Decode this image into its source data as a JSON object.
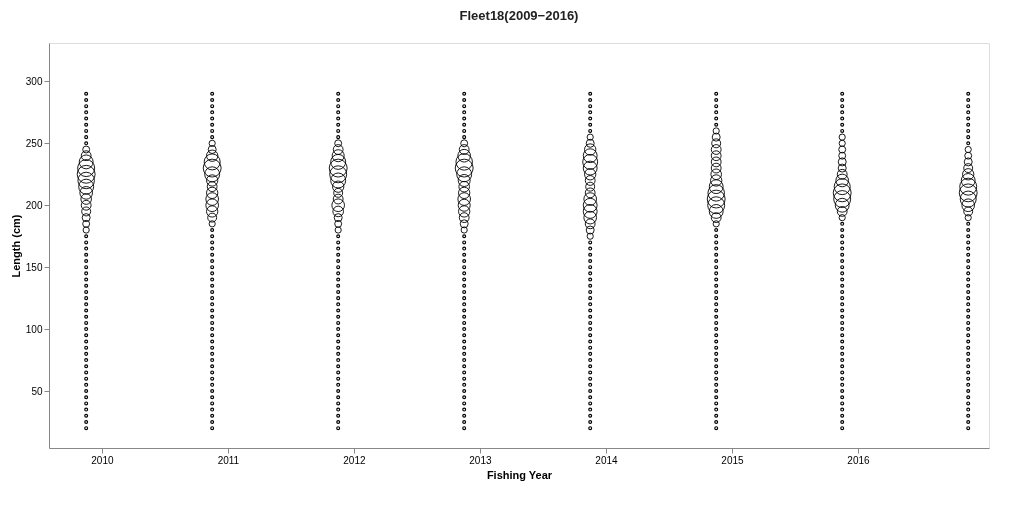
{
  "chart_data": {
    "type": "bubble",
    "title": "Fleet18(2009−2016)",
    "xlabel": "Fishing Year",
    "ylabel": "Length (cm)",
    "xlim": [
      2009.58,
      2017.04
    ],
    "xticks": [
      2010,
      2011,
      2012,
      2013,
      2014,
      2015,
      2016
    ],
    "ylim": [
      4,
      331
    ],
    "yticks": [
      50,
      100,
      150,
      200,
      250,
      300
    ],
    "grid": false,
    "legend": false,
    "series": [
      {
        "color": "#000000",
        "x": [
          2009.875,
          2009.875,
          2009.875,
          2009.875,
          2009.875,
          2009.875,
          2009.875,
          2009.875,
          2009.875,
          2009.875,
          2009.875,
          2009.875,
          2009.875,
          2009.875
        ],
        "values": [
          180,
          185,
          190,
          195,
          200,
          205,
          210,
          215,
          220,
          225,
          230,
          235,
          240,
          245
        ],
        "sizes": [
          0.12,
          0.15,
          0.2,
          0.25,
          0.3,
          0.35,
          0.5,
          0.7,
          0.85,
          1,
          0.9,
          0.6,
          0.3,
          0.15
        ]
      },
      {
        "color": "#000000",
        "x": [
          2010.875,
          2010.875,
          2010.875,
          2010.875,
          2010.875,
          2010.875,
          2010.875,
          2010.875,
          2010.875,
          2010.875,
          2010.875,
          2010.875,
          2010.875,
          2010.875
        ],
        "values": [
          185,
          190,
          195,
          200,
          205,
          210,
          215,
          220,
          225,
          230,
          235,
          240,
          245,
          250
        ],
        "sizes": [
          0.12,
          0.25,
          0.4,
          0.5,
          0.5,
          0.4,
          0.3,
          0.4,
          0.7,
          1,
          0.8,
          0.4,
          0.2,
          0.12
        ]
      },
      {
        "color": "#000000",
        "x": [
          2011.875,
          2011.875,
          2011.875,
          2011.875,
          2011.875,
          2011.875,
          2011.875,
          2011.875,
          2011.875,
          2011.875,
          2011.875,
          2011.875,
          2011.875,
          2011.875,
          2011.875
        ],
        "values": [
          180,
          185,
          190,
          195,
          200,
          205,
          210,
          215,
          220,
          225,
          230,
          235,
          240,
          245,
          250
        ],
        "sizes": [
          0.12,
          0.15,
          0.2,
          0.35,
          0.5,
          0.3,
          0.25,
          0.4,
          0.7,
          0.9,
          1,
          0.7,
          0.45,
          0.3,
          0.15
        ]
      },
      {
        "color": "#000000",
        "x": [
          2012.875,
          2012.875,
          2012.875,
          2012.875,
          2012.875,
          2012.875,
          2012.875,
          2012.875,
          2012.875,
          2012.875,
          2012.875,
          2012.875,
          2012.875,
          2012.875,
          2012.875
        ],
        "values": [
          180,
          185,
          190,
          195,
          200,
          205,
          210,
          215,
          220,
          225,
          230,
          235,
          240,
          245,
          250
        ],
        "sizes": [
          0.12,
          0.2,
          0.3,
          0.4,
          0.45,
          0.5,
          0.4,
          0.35,
          0.45,
          0.7,
          1,
          0.85,
          0.5,
          0.3,
          0.15
        ]
      },
      {
        "color": "#000000",
        "x": [
          2013.875,
          2013.875,
          2013.875,
          2013.875,
          2013.875,
          2013.875,
          2013.875,
          2013.875,
          2013.875,
          2013.875,
          2013.875,
          2013.875,
          2013.875,
          2013.875,
          2013.875,
          2013.875,
          2013.875
        ],
        "values": [
          175,
          180,
          185,
          190,
          195,
          200,
          205,
          210,
          215,
          220,
          225,
          230,
          235,
          240,
          245,
          250,
          255
        ],
        "sizes": [
          0.12,
          0.2,
          0.3,
          0.5,
          0.6,
          0.6,
          0.5,
          0.3,
          0.25,
          0.3,
          0.4,
          0.6,
          0.7,
          0.6,
          0.4,
          0.2,
          0.12
        ]
      },
      {
        "color": "#000000",
        "x": [
          2014.875,
          2014.875,
          2014.875,
          2014.875,
          2014.875,
          2014.875,
          2014.875,
          2014.875,
          2014.875,
          2014.875,
          2014.875,
          2014.875,
          2014.875,
          2014.875,
          2014.875,
          2014.875
        ],
        "values": [
          185,
          190,
          195,
          200,
          205,
          210,
          215,
          220,
          225,
          230,
          235,
          240,
          245,
          250,
          255,
          260
        ],
        "sizes": [
          0.12,
          0.3,
          0.6,
          0.9,
          1,
          0.85,
          0.6,
          0.4,
          0.35,
          0.3,
          0.3,
          0.3,
          0.3,
          0.25,
          0.2,
          0.12
        ]
      },
      {
        "color": "#000000",
        "x": [
          2015.875,
          2015.875,
          2015.875,
          2015.875,
          2015.875,
          2015.875,
          2015.875,
          2015.875,
          2015.875,
          2015.875,
          2015.875,
          2015.875,
          2015.875,
          2015.875
        ],
        "values": [
          190,
          195,
          200,
          205,
          210,
          215,
          220,
          225,
          230,
          235,
          240,
          245,
          250,
          255
        ],
        "sizes": [
          0.12,
          0.3,
          0.6,
          0.9,
          1,
          0.8,
          0.5,
          0.3,
          0.2,
          0.2,
          0.15,
          0.15,
          0.12,
          0.12
        ]
      },
      {
        "color": "#000000",
        "x": [
          2016.875,
          2016.875,
          2016.875,
          2016.875,
          2016.875,
          2016.875,
          2016.875,
          2016.875,
          2016.875,
          2016.875,
          2016.875,
          2016.875
        ],
        "values": [
          190,
          195,
          200,
          205,
          210,
          215,
          220,
          225,
          230,
          235,
          240,
          245
        ],
        "sizes": [
          0.12,
          0.25,
          0.5,
          0.8,
          1,
          0.9,
          0.6,
          0.4,
          0.25,
          0.2,
          0.15,
          0.12
        ]
      },
      {
        "type": "scatter",
        "color": "#000000",
        "x": [
          2009.875,
          2009.875,
          2009.875,
          2009.875,
          2009.875,
          2009.875,
          2009.875,
          2009.875,
          2009.875,
          2009.875,
          2009.875,
          2009.875,
          2009.875,
          2009.875,
          2009.875,
          2009.875,
          2009.875,
          2009.875,
          2009.875,
          2009.875,
          2009.875,
          2009.875,
          2009.875,
          2009.875,
          2009.875,
          2009.875,
          2009.875,
          2009.875,
          2009.875,
          2009.875,
          2009.875,
          2009.875,
          2009.875,
          2009.875,
          2009.875,
          2009.875,
          2009.875,
          2009.875,
          2009.875,
          2009.875,
          2009.875
        ],
        "values": [
          20,
          25,
          30,
          35,
          40,
          45,
          50,
          55,
          60,
          65,
          70,
          75,
          80,
          85,
          90,
          95,
          100,
          105,
          110,
          115,
          120,
          125,
          130,
          135,
          140,
          145,
          150,
          155,
          160,
          165,
          170,
          175,
          250,
          255,
          260,
          265,
          270,
          275,
          280,
          285,
          290
        ]
      },
      {
        "type": "scatter",
        "color": "#000000",
        "x": [
          2010.875,
          2010.875,
          2010.875,
          2010.875,
          2010.875,
          2010.875,
          2010.875,
          2010.875,
          2010.875,
          2010.875,
          2010.875,
          2010.875,
          2010.875,
          2010.875,
          2010.875,
          2010.875,
          2010.875,
          2010.875,
          2010.875,
          2010.875,
          2010.875,
          2010.875,
          2010.875,
          2010.875,
          2010.875,
          2010.875,
          2010.875,
          2010.875,
          2010.875,
          2010.875,
          2010.875,
          2010.875,
          2010.875,
          2010.875,
          2010.875,
          2010.875,
          2010.875,
          2010.875,
          2010.875,
          2010.875,
          2010.875
        ],
        "values": [
          20,
          25,
          30,
          35,
          40,
          45,
          50,
          55,
          60,
          65,
          70,
          75,
          80,
          85,
          90,
          95,
          100,
          105,
          110,
          115,
          120,
          125,
          130,
          135,
          140,
          145,
          150,
          155,
          160,
          165,
          170,
          175,
          180,
          255,
          260,
          265,
          270,
          275,
          280,
          285,
          290
        ]
      },
      {
        "type": "scatter",
        "color": "#000000",
        "x": [
          2011.875,
          2011.875,
          2011.875,
          2011.875,
          2011.875,
          2011.875,
          2011.875,
          2011.875,
          2011.875,
          2011.875,
          2011.875,
          2011.875,
          2011.875,
          2011.875,
          2011.875,
          2011.875,
          2011.875,
          2011.875,
          2011.875,
          2011.875,
          2011.875,
          2011.875,
          2011.875,
          2011.875,
          2011.875,
          2011.875,
          2011.875,
          2011.875,
          2011.875,
          2011.875,
          2011.875,
          2011.875,
          2011.875,
          2011.875,
          2011.875,
          2011.875,
          2011.875,
          2011.875,
          2011.875,
          2011.875
        ],
        "values": [
          20,
          25,
          30,
          35,
          40,
          45,
          50,
          55,
          60,
          65,
          70,
          75,
          80,
          85,
          90,
          95,
          100,
          105,
          110,
          115,
          120,
          125,
          130,
          135,
          140,
          145,
          150,
          155,
          160,
          165,
          170,
          175,
          255,
          260,
          265,
          270,
          275,
          280,
          285,
          290
        ]
      },
      {
        "type": "scatter",
        "color": "#000000",
        "x": [
          2012.875,
          2012.875,
          2012.875,
          2012.875,
          2012.875,
          2012.875,
          2012.875,
          2012.875,
          2012.875,
          2012.875,
          2012.875,
          2012.875,
          2012.875,
          2012.875,
          2012.875,
          2012.875,
          2012.875,
          2012.875,
          2012.875,
          2012.875,
          2012.875,
          2012.875,
          2012.875,
          2012.875,
          2012.875,
          2012.875,
          2012.875,
          2012.875,
          2012.875,
          2012.875,
          2012.875,
          2012.875,
          2012.875,
          2012.875,
          2012.875,
          2012.875,
          2012.875,
          2012.875,
          2012.875,
          2012.875
        ],
        "values": [
          20,
          25,
          30,
          35,
          40,
          45,
          50,
          55,
          60,
          65,
          70,
          75,
          80,
          85,
          90,
          95,
          100,
          105,
          110,
          115,
          120,
          125,
          130,
          135,
          140,
          145,
          150,
          155,
          160,
          165,
          170,
          175,
          255,
          260,
          265,
          270,
          275,
          280,
          285,
          290
        ]
      },
      {
        "type": "scatter",
        "color": "#000000",
        "x": [
          2013.875,
          2013.875,
          2013.875,
          2013.875,
          2013.875,
          2013.875,
          2013.875,
          2013.875,
          2013.875,
          2013.875,
          2013.875,
          2013.875,
          2013.875,
          2013.875,
          2013.875,
          2013.875,
          2013.875,
          2013.875,
          2013.875,
          2013.875,
          2013.875,
          2013.875,
          2013.875,
          2013.875,
          2013.875,
          2013.875,
          2013.875,
          2013.875,
          2013.875,
          2013.875,
          2013.875,
          2013.875,
          2013.875,
          2013.875,
          2013.875,
          2013.875,
          2013.875,
          2013.875
        ],
        "values": [
          20,
          25,
          30,
          35,
          40,
          45,
          50,
          55,
          60,
          65,
          70,
          75,
          80,
          85,
          90,
          95,
          100,
          105,
          110,
          115,
          120,
          125,
          130,
          135,
          140,
          145,
          150,
          155,
          160,
          165,
          170,
          260,
          265,
          270,
          275,
          280,
          285,
          290
        ]
      },
      {
        "type": "scatter",
        "color": "#000000",
        "x": [
          2014.875,
          2014.875,
          2014.875,
          2014.875,
          2014.875,
          2014.875,
          2014.875,
          2014.875,
          2014.875,
          2014.875,
          2014.875,
          2014.875,
          2014.875,
          2014.875,
          2014.875,
          2014.875,
          2014.875,
          2014.875,
          2014.875,
          2014.875,
          2014.875,
          2014.875,
          2014.875,
          2014.875,
          2014.875,
          2014.875,
          2014.875,
          2014.875,
          2014.875,
          2014.875,
          2014.875,
          2014.875,
          2014.875,
          2014.875,
          2014.875,
          2014.875,
          2014.875,
          2014.875,
          2014.875
        ],
        "values": [
          20,
          25,
          30,
          35,
          40,
          45,
          50,
          55,
          60,
          65,
          70,
          75,
          80,
          85,
          90,
          95,
          100,
          105,
          110,
          115,
          120,
          125,
          130,
          135,
          140,
          145,
          150,
          155,
          160,
          165,
          170,
          175,
          180,
          265,
          270,
          275,
          280,
          285,
          290
        ]
      },
      {
        "type": "scatter",
        "color": "#000000",
        "x": [
          2015.875,
          2015.875,
          2015.875,
          2015.875,
          2015.875,
          2015.875,
          2015.875,
          2015.875,
          2015.875,
          2015.875,
          2015.875,
          2015.875,
          2015.875,
          2015.875,
          2015.875,
          2015.875,
          2015.875,
          2015.875,
          2015.875,
          2015.875,
          2015.875,
          2015.875,
          2015.875,
          2015.875,
          2015.875,
          2015.875,
          2015.875,
          2015.875,
          2015.875,
          2015.875,
          2015.875,
          2015.875,
          2015.875,
          2015.875,
          2015.875,
          2015.875,
          2015.875,
          2015.875,
          2015.875,
          2015.875,
          2015.875
        ],
        "values": [
          20,
          25,
          30,
          35,
          40,
          45,
          50,
          55,
          60,
          65,
          70,
          75,
          80,
          85,
          90,
          95,
          100,
          105,
          110,
          115,
          120,
          125,
          130,
          135,
          140,
          145,
          150,
          155,
          160,
          165,
          170,
          175,
          180,
          185,
          260,
          265,
          270,
          275,
          280,
          285,
          290
        ]
      },
      {
        "type": "scatter",
        "color": "#000000",
        "x": [
          2016.875,
          2016.875,
          2016.875,
          2016.875,
          2016.875,
          2016.875,
          2016.875,
          2016.875,
          2016.875,
          2016.875,
          2016.875,
          2016.875,
          2016.875,
          2016.875,
          2016.875,
          2016.875,
          2016.875,
          2016.875,
          2016.875,
          2016.875,
          2016.875,
          2016.875,
          2016.875,
          2016.875,
          2016.875,
          2016.875,
          2016.875,
          2016.875,
          2016.875,
          2016.875,
          2016.875,
          2016.875,
          2016.875,
          2016.875,
          2016.875,
          2016.875,
          2016.875,
          2016.875,
          2016.875,
          2016.875,
          2016.875,
          2016.875,
          2016.875
        ],
        "values": [
          20,
          25,
          30,
          35,
          40,
          45,
          50,
          55,
          60,
          65,
          70,
          75,
          80,
          85,
          90,
          95,
          100,
          105,
          110,
          115,
          120,
          125,
          130,
          135,
          140,
          145,
          150,
          155,
          160,
          165,
          170,
          175,
          180,
          185,
          250,
          255,
          260,
          265,
          270,
          275,
          280,
          285,
          290
        ]
      }
    ]
  }
}
